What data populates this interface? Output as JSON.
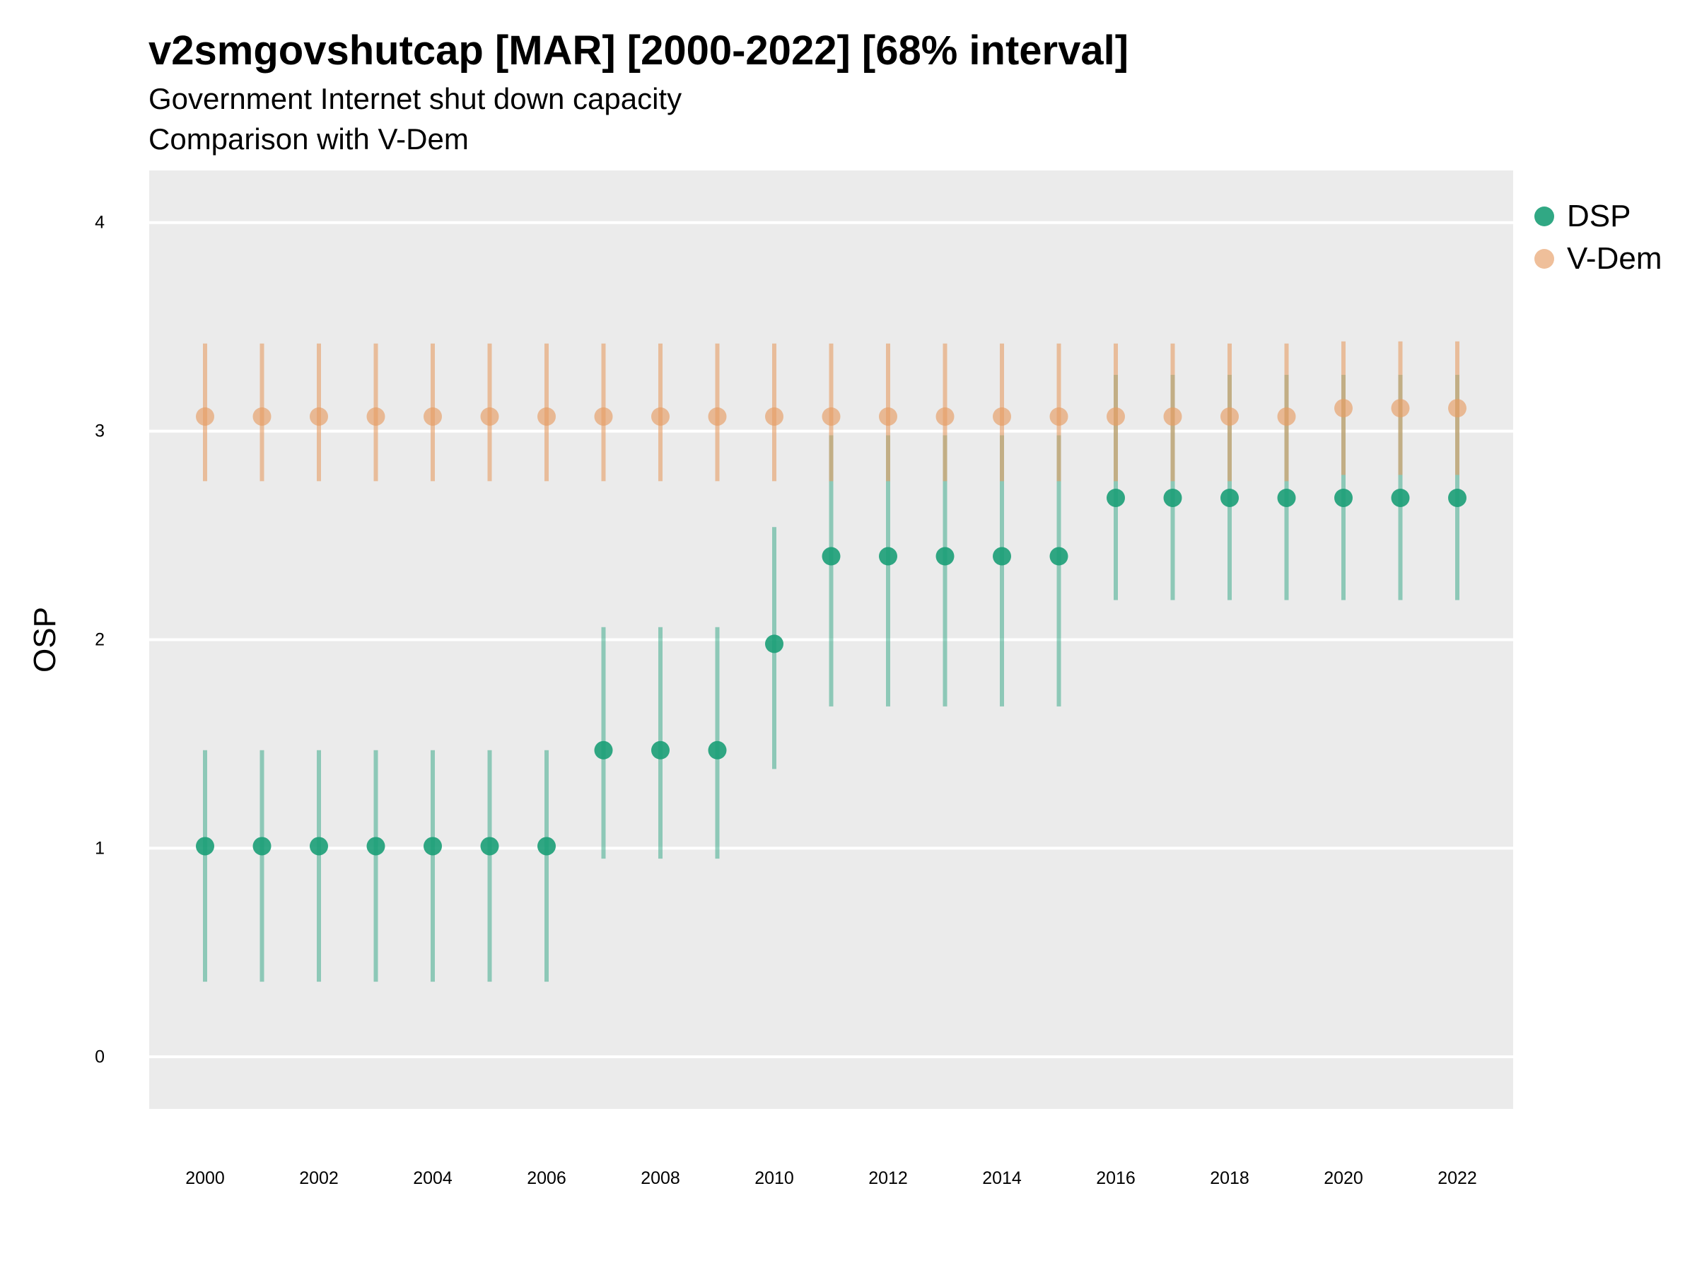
{
  "header": {
    "title": "v2smgovshutcap [MAR] [2000-2022] [68% interval]",
    "subtitle1": "Government Internet shut down capacity",
    "subtitle2": "Comparison with V-Dem"
  },
  "colors": {
    "panel": "#ebebeb",
    "grid": "#ffffff",
    "dsp": "#1b9e77",
    "vdem": "#e69c64"
  },
  "chart_data": {
    "type": "scatter",
    "title": "v2smgovshutcap [MAR] [2000-2022] [68% interval]",
    "xlabel": "",
    "ylabel": "OSP",
    "ylim": [
      -0.25,
      4.25
    ],
    "yticks": [
      0,
      1,
      2,
      3,
      4
    ],
    "x": [
      2000,
      2001,
      2002,
      2003,
      2004,
      2005,
      2006,
      2007,
      2008,
      2009,
      2010,
      2011,
      2012,
      2013,
      2014,
      2015,
      2016,
      2017,
      2018,
      2019,
      2020,
      2021,
      2022
    ],
    "xticks": [
      2000,
      2002,
      2004,
      2006,
      2008,
      2010,
      2012,
      2014,
      2016,
      2018,
      2020,
      2022
    ],
    "legend_position": "right",
    "series": [
      {
        "name": "DSP",
        "values": [
          1.01,
          1.01,
          1.01,
          1.01,
          1.01,
          1.01,
          1.01,
          1.47,
          1.47,
          1.47,
          1.98,
          2.4,
          2.4,
          2.4,
          2.4,
          2.4,
          2.68,
          2.68,
          2.68,
          2.68,
          2.68,
          2.68,
          2.68
        ],
        "lower": [
          0.36,
          0.36,
          0.36,
          0.36,
          0.36,
          0.36,
          0.36,
          0.95,
          0.95,
          0.95,
          1.38,
          1.68,
          1.68,
          1.68,
          1.68,
          1.68,
          2.19,
          2.19,
          2.19,
          2.19,
          2.19,
          2.19,
          2.19
        ],
        "upper": [
          1.47,
          1.47,
          1.47,
          1.47,
          1.47,
          1.47,
          1.47,
          2.06,
          2.06,
          2.06,
          2.54,
          2.98,
          2.98,
          2.98,
          2.98,
          2.98,
          3.27,
          3.27,
          3.27,
          3.27,
          3.27,
          3.27,
          3.27
        ]
      },
      {
        "name": "V-Dem",
        "values": [
          3.07,
          3.07,
          3.07,
          3.07,
          3.07,
          3.07,
          3.07,
          3.07,
          3.07,
          3.07,
          3.07,
          3.07,
          3.07,
          3.07,
          3.07,
          3.07,
          3.07,
          3.07,
          3.07,
          3.07,
          3.11,
          3.11,
          3.11
        ],
        "lower": [
          2.76,
          2.76,
          2.76,
          2.76,
          2.76,
          2.76,
          2.76,
          2.76,
          2.76,
          2.76,
          2.76,
          2.76,
          2.76,
          2.76,
          2.76,
          2.76,
          2.76,
          2.76,
          2.76,
          2.76,
          2.79,
          2.79,
          2.79
        ],
        "upper": [
          3.42,
          3.42,
          3.42,
          3.42,
          3.42,
          3.42,
          3.42,
          3.42,
          3.42,
          3.42,
          3.42,
          3.42,
          3.42,
          3.42,
          3.42,
          3.42,
          3.42,
          3.42,
          3.42,
          3.42,
          3.43,
          3.43,
          3.43
        ]
      }
    ]
  }
}
